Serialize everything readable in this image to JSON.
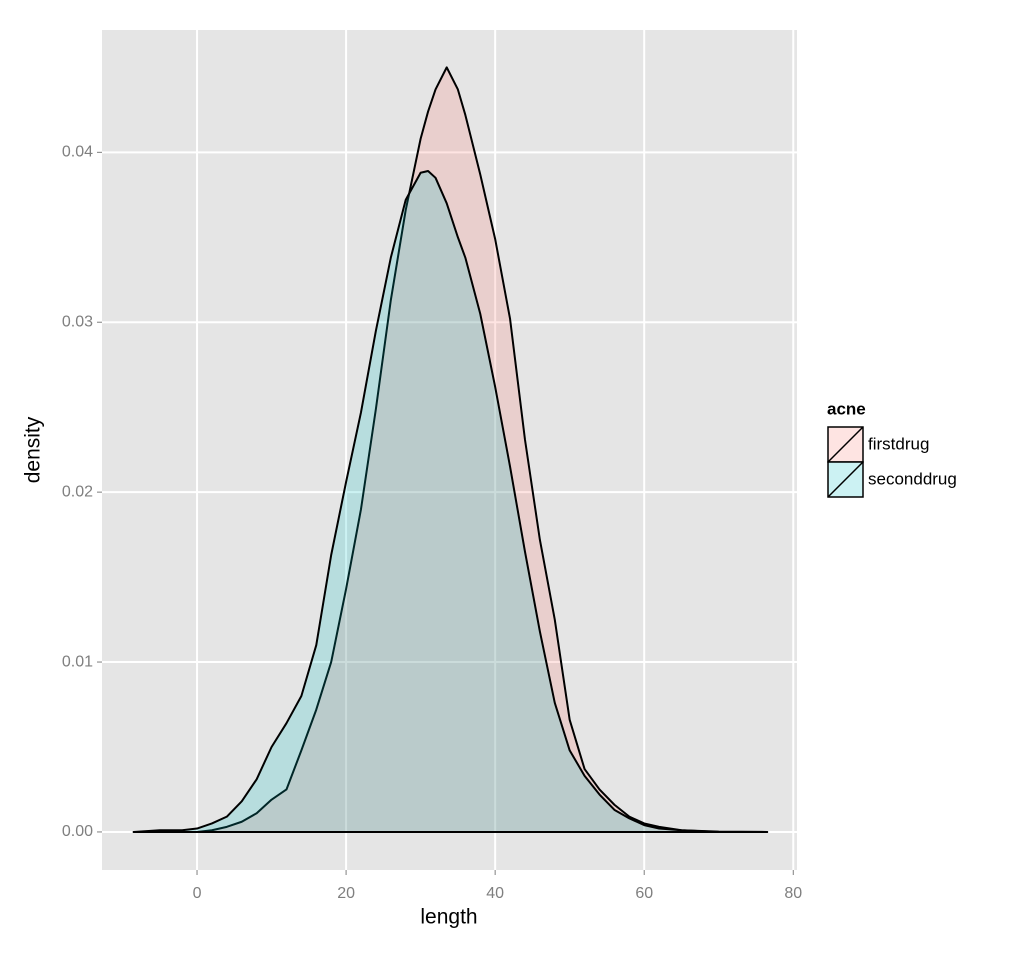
{
  "chart_data": {
    "type": "area",
    "x_label": "length",
    "y_label": "density",
    "x": [
      -8.5,
      -5,
      -2,
      0,
      2,
      4,
      6,
      8,
      10,
      12,
      14,
      16,
      18,
      20,
      22,
      24,
      26,
      28,
      30,
      31,
      32,
      33.5,
      35,
      36,
      38,
      40,
      42,
      44,
      46,
      48,
      50,
      52,
      54,
      56,
      58,
      60,
      62,
      65,
      70,
      76.5
    ],
    "series": [
      {
        "name": "firstdrug",
        "color": "#F8766D",
        "values": [
          0,
          0,
          0,
          0,
          0.0001,
          0.0003,
          0.0006,
          0.0011,
          0.0019,
          0.0025,
          0.0048,
          0.0072,
          0.01,
          0.0143,
          0.019,
          0.0249,
          0.0313,
          0.0366,
          0.0408,
          0.0424,
          0.0437,
          0.045,
          0.0437,
          0.0422,
          0.0387,
          0.0349,
          0.0302,
          0.0231,
          0.0172,
          0.0125,
          0.0066,
          0.0037,
          0.0025,
          0.0016,
          0.0009,
          0.0005,
          0.0003,
          0.0001,
          2e-05,
          0
        ]
      },
      {
        "name": "seconddrug",
        "color": "#00BFC4",
        "values": [
          0,
          0.0001,
          0.0001,
          0.0002,
          0.0005,
          0.0009,
          0.0018,
          0.0031,
          0.005,
          0.0064,
          0.008,
          0.011,
          0.0163,
          0.0206,
          0.0247,
          0.0295,
          0.0338,
          0.0372,
          0.0388,
          0.0389,
          0.0385,
          0.037,
          0.035,
          0.0338,
          0.0305,
          0.0262,
          0.0215,
          0.0165,
          0.0118,
          0.0076,
          0.0048,
          0.0033,
          0.0022,
          0.0013,
          0.0008,
          0.0004,
          0.0002,
          0.0001,
          0,
          0
        ]
      }
    ],
    "fill_opacity": 0.2,
    "xlim": [
      -12.75,
      80.5
    ],
    "xticks": [
      0,
      20,
      40,
      60,
      80
    ],
    "ylim": [
      -0.00224,
      0.0472
    ],
    "yticks": [
      {
        "value": 0,
        "label": "0.00"
      },
      0.01,
      0.02,
      0.03,
      0.04
    ],
    "grid": true,
    "legend": {
      "title": "acne",
      "position": "right"
    }
  }
}
